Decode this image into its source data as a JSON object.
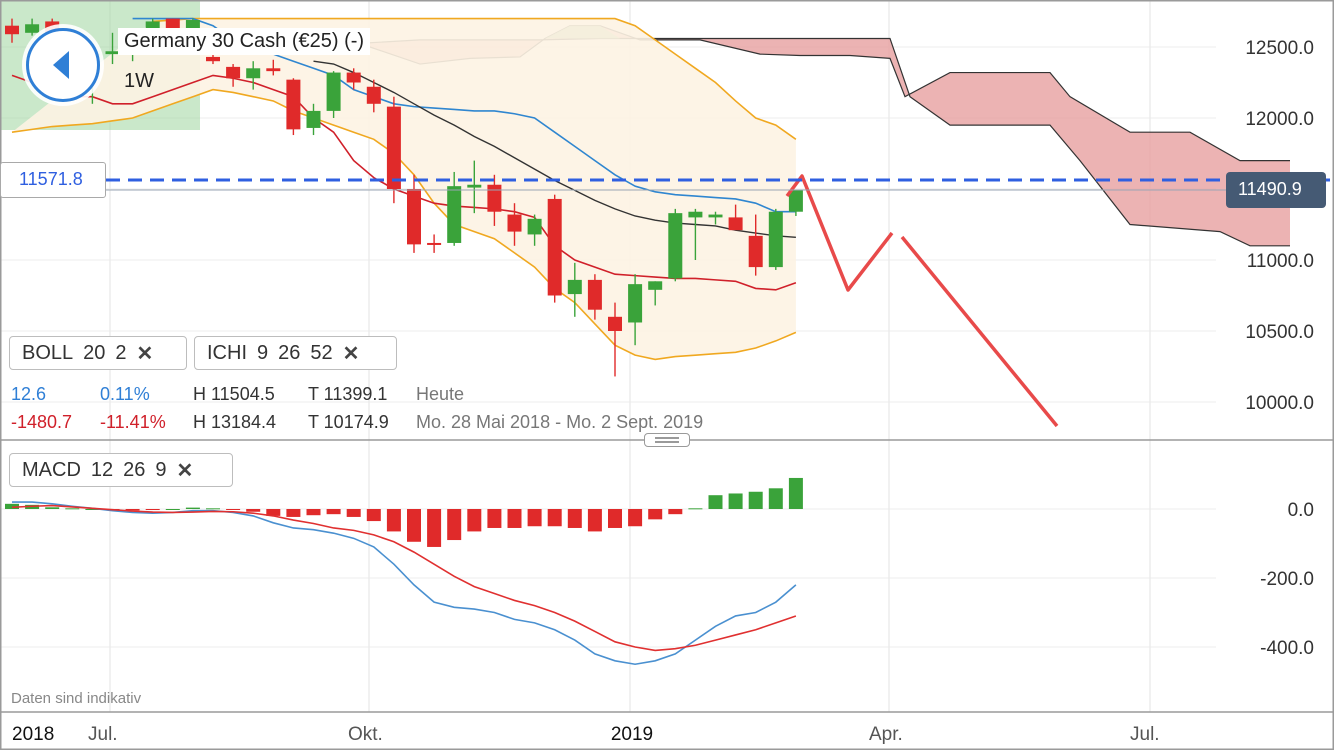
{
  "header": {
    "instrument": "Germany 30 Cash (€25) (-)",
    "interval": "1W"
  },
  "price_labels": {
    "horizontal_line": "11571.8",
    "last_price": "11490.9"
  },
  "indicators": {
    "boll": {
      "name": "BOLL",
      "p1": "20",
      "p2": "2"
    },
    "ichi": {
      "name": "ICHI",
      "p1": "9",
      "p2": "26",
      "p3": "52"
    },
    "macd": {
      "name": "MACD",
      "p1": "12",
      "p2": "26",
      "p3": "9"
    }
  },
  "stats": {
    "row1": {
      "change": "12.6",
      "change_pct": "0.11%",
      "high": "H 11504.5",
      "low": "T 11399.1",
      "period": "Heute"
    },
    "row2": {
      "change": "-1480.7",
      "change_pct": "-11.41%",
      "high": "H 13184.4",
      "low": "T 10174.9",
      "period": "Mo. 28 Mai 2018 - Mo. 2 Sept. 2019"
    }
  },
  "footnote": "Daten sind indikativ",
  "colors": {
    "up": "#3aa33a",
    "down": "#e02a2a",
    "boll_band": "#f0a820",
    "tenkan": "#2f86d0",
    "kijun": "#d0202a",
    "price_line": "#2f5fe0",
    "macd_line": "#4a90d0",
    "signal_line": "#e03030",
    "kumo_bear": "#e7a0a0",
    "kumo_bull": "#9fd59f",
    "drawing": "#e84a4a",
    "pill": "#455a74"
  },
  "chart_data": {
    "type": "candlestick",
    "x_ticks": [
      "2018",
      "Jul.",
      "Okt.",
      "2019",
      "Apr.",
      "Jul."
    ],
    "y_ticks_price": [
      "12500.0",
      "12000.0",
      "11500.0",
      "11000.0",
      "10500.0",
      "10000.0"
    ],
    "y_ticks_macd": [
      "0.0",
      "-200.0",
      "-400.0"
    ],
    "price_ylim": [
      9900,
      12700
    ],
    "macd_ylim": [
      -480,
      120
    ],
    "candles": [
      {
        "o": 12650,
        "h": 12700,
        "l": 12530,
        "c": 12590
      },
      {
        "o": 12600,
        "h": 12700,
        "l": 12580,
        "c": 12660
      },
      {
        "o": 12680,
        "h": 12700,
        "l": 12550,
        "c": 12580
      },
      {
        "o": 12300,
        "h": 12430,
        "l": 12120,
        "c": 12220
      },
      {
        "o": 12320,
        "h": 12520,
        "l": 12100,
        "c": 12450
      },
      {
        "o": 12450,
        "h": 12600,
        "l": 12380,
        "c": 12470
      },
      {
        "o": 12480,
        "h": 12600,
        "l": 12400,
        "c": 12560
      },
      {
        "o": 12600,
        "h": 12700,
        "l": 12500,
        "c": 12680
      },
      {
        "o": 12700,
        "h": 12700,
        "l": 12600,
        "c": 12620
      },
      {
        "o": 12620,
        "h": 12700,
        "l": 12590,
        "c": 12690
      },
      {
        "o": 12430,
        "h": 12480,
        "l": 12380,
        "c": 12400
      },
      {
        "o": 12360,
        "h": 12380,
        "l": 12220,
        "c": 12280
      },
      {
        "o": 12280,
        "h": 12400,
        "l": 12200,
        "c": 12350
      },
      {
        "o": 12350,
        "h": 12410,
        "l": 12300,
        "c": 12330
      },
      {
        "o": 12270,
        "h": 12280,
        "l": 11880,
        "c": 11920
      },
      {
        "o": 11930,
        "h": 12100,
        "l": 11880,
        "c": 12050
      },
      {
        "o": 12050,
        "h": 12330,
        "l": 12000,
        "c": 12320
      },
      {
        "o": 12320,
        "h": 12350,
        "l": 12200,
        "c": 12250
      },
      {
        "o": 12220,
        "h": 12270,
        "l": 12040,
        "c": 12100
      },
      {
        "o": 12080,
        "h": 12150,
        "l": 11400,
        "c": 11500
      },
      {
        "o": 11500,
        "h": 11600,
        "l": 11050,
        "c": 11110
      },
      {
        "o": 11120,
        "h": 11180,
        "l": 11050,
        "c": 11110
      },
      {
        "o": 11120,
        "h": 11620,
        "l": 11100,
        "c": 11520
      },
      {
        "o": 11510,
        "h": 11700,
        "l": 11330,
        "c": 11530
      },
      {
        "o": 11530,
        "h": 11600,
        "l": 11240,
        "c": 11340
      },
      {
        "o": 11320,
        "h": 11400,
        "l": 11100,
        "c": 11200
      },
      {
        "o": 11180,
        "h": 11320,
        "l": 11100,
        "c": 11290
      },
      {
        "o": 11430,
        "h": 11460,
        "l": 10700,
        "c": 10750
      },
      {
        "o": 10760,
        "h": 10980,
        "l": 10600,
        "c": 10860
      },
      {
        "o": 10860,
        "h": 10900,
        "l": 10580,
        "c": 10650
      },
      {
        "o": 10600,
        "h": 10700,
        "l": 10180,
        "c": 10500
      },
      {
        "o": 10560,
        "h": 10900,
        "l": 10400,
        "c": 10830
      },
      {
        "o": 10790,
        "h": 10850,
        "l": 10680,
        "c": 10850
      },
      {
        "o": 10870,
        "h": 11360,
        "l": 10850,
        "c": 11330
      },
      {
        "o": 11300,
        "h": 11360,
        "l": 11000,
        "c": 11340
      },
      {
        "o": 11300,
        "h": 11340,
        "l": 11250,
        "c": 11320
      },
      {
        "o": 11300,
        "h": 11390,
        "l": 11230,
        "c": 11210
      },
      {
        "o": 11170,
        "h": 11320,
        "l": 10890,
        "c": 10950
      },
      {
        "o": 10950,
        "h": 11360,
        "l": 10930,
        "c": 11340
      },
      {
        "o": 11340,
        "h": 11480,
        "l": 11310,
        "c": 11490
      }
    ],
    "boll_upper": [
      null,
      null,
      null,
      null,
      null,
      null,
      null,
      12680,
      12690,
      12700,
      12700,
      12700,
      12700,
      12700,
      12700,
      12700,
      12700,
      12700,
      12700,
      12700,
      12700,
      12700,
      12700,
      12700,
      12700,
      12700,
      12700,
      12700,
      12700,
      12700,
      12700,
      12650,
      12550,
      12450,
      12350,
      12250,
      12120,
      12000,
      11950,
      11850
    ],
    "boll_lower": [
      11900,
      11920,
      11940,
      11950,
      11960,
      11980,
      12000,
      12050,
      12100,
      12150,
      12200,
      12180,
      12150,
      12120,
      12050,
      12000,
      11950,
      11900,
      11850,
      11750,
      11600,
      11400,
      11250,
      11200,
      11150,
      11050,
      10950,
      10800,
      10700,
      10550,
      10400,
      10330,
      10300,
      10320,
      10330,
      10340,
      10350,
      10380,
      10430,
      10490
    ],
    "ichimoku_tenkan": [
      null,
      null,
      null,
      null,
      null,
      null,
      12700,
      12700,
      12700,
      12700,
      12650,
      12550,
      12500,
      12450,
      12400,
      12350,
      12300,
      12200,
      12150,
      12100,
      12080,
      12070,
      12060,
      12050,
      12050,
      12030,
      12000,
      11900,
      11800,
      11700,
      11600,
      11520,
      11480,
      11460,
      11450,
      11440,
      11430,
      11400,
      11340,
      11340
    ],
    "ichimoku_kijun": [
      12300,
      12250,
      12200,
      12150,
      12150,
      12100,
      12100,
      12150,
      12200,
      12250,
      12300,
      12280,
      12250,
      12200,
      12150,
      12000,
      11900,
      11700,
      11580,
      11500,
      11450,
      11400,
      11380,
      11370,
      11360,
      11340,
      11300,
      11100,
      11000,
      10950,
      10900,
      10890,
      10880,
      10870,
      10870,
      10860,
      10850,
      10800,
      10790,
      10840
    ],
    "ichimoku_kijun_black": [
      null,
      null,
      null,
      null,
      null,
      null,
      null,
      null,
      null,
      null,
      null,
      null,
      null,
      null,
      null,
      12400,
      12380,
      12320,
      12250,
      12180,
      12100,
      12020,
      11950,
      11870,
      11800,
      11720,
      11640,
      11560,
      11490,
      11420,
      11360,
      11310,
      11280,
      11260,
      11250,
      11240,
      11210,
      11190,
      11170,
      11160
    ],
    "macd": [
      20,
      20,
      15,
      8,
      2,
      -5,
      -10,
      -12,
      -10,
      -5,
      -5,
      -10,
      -20,
      -40,
      -55,
      -60,
      -70,
      -85,
      -110,
      -160,
      -220,
      -270,
      -285,
      -290,
      -300,
      -320,
      -330,
      -350,
      -380,
      -420,
      -440,
      -450,
      -440,
      -420,
      -380,
      -340,
      -310,
      -300,
      -270,
      -220
    ],
    "signal": [
      5,
      8,
      10,
      6,
      2,
      -2,
      -6,
      -9,
      -10,
      -9,
      -7,
      -8,
      -12,
      -20,
      -32,
      -42,
      -55,
      -62,
      -75,
      -95,
      -125,
      -160,
      -195,
      -225,
      -245,
      -265,
      -280,
      -300,
      -325,
      -355,
      -385,
      -400,
      -410,
      -405,
      -395,
      -380,
      -365,
      -350,
      -330,
      -310
    ],
    "macd_hist": [
      15,
      12,
      5,
      2,
      0,
      -3,
      -4,
      -3,
      0,
      4,
      2,
      -2,
      -8,
      -20,
      -23,
      -18,
      -15,
      -23,
      -35,
      -65,
      -95,
      -110,
      -90,
      -65,
      -55,
      -55,
      -50,
      -50,
      -55,
      -65,
      -55,
      -50,
      -30,
      -15,
      2,
      40,
      45,
      50,
      60,
      90
    ]
  }
}
